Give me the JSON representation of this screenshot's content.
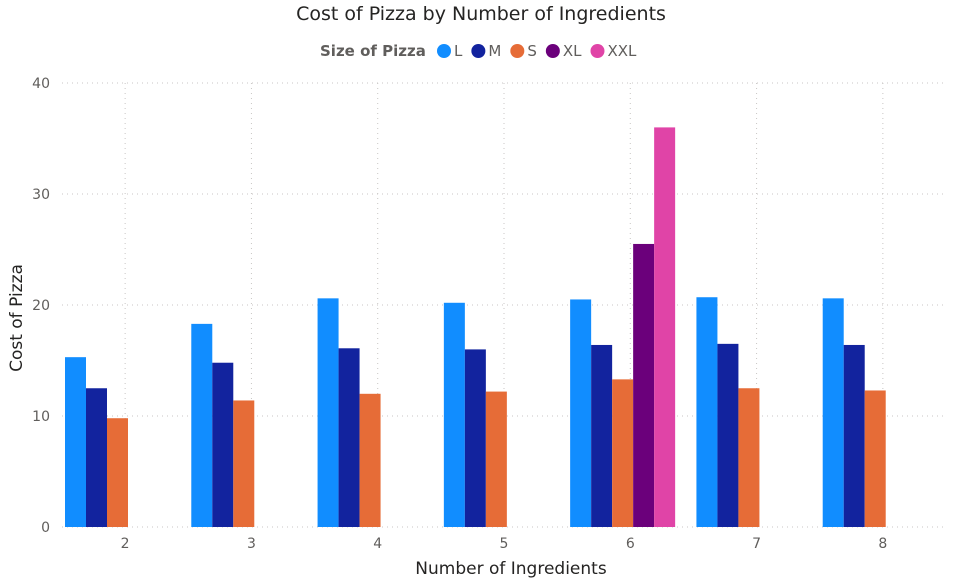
{
  "chart_data": {
    "type": "bar",
    "title": "Cost of Pizza by Number of Ingredients",
    "xlabel": "Number of Ingredients",
    "ylabel": "Cost of Pizza",
    "ylim": [
      0,
      40
    ],
    "yticks": [
      0,
      10,
      20,
      30,
      40
    ],
    "legend": {
      "title": "Size of Pizza",
      "placement": "top-center"
    },
    "grid": true,
    "categories": [
      "2",
      "3",
      "4",
      "5",
      "6",
      "7",
      "8"
    ],
    "series": [
      {
        "name": "L",
        "color": "#118dff",
        "values": [
          15.3,
          18.3,
          20.6,
          20.2,
          20.5,
          20.7,
          20.6
        ]
      },
      {
        "name": "M",
        "color": "#12239e",
        "values": [
          12.5,
          14.8,
          16.1,
          16.0,
          16.4,
          16.5,
          16.4
        ]
      },
      {
        "name": "S",
        "color": "#e66c37",
        "values": [
          9.8,
          11.4,
          12.0,
          12.2,
          13.3,
          12.5,
          12.3
        ]
      },
      {
        "name": "XL",
        "color": "#6b007b",
        "values": [
          null,
          null,
          null,
          null,
          25.5,
          null,
          null
        ]
      },
      {
        "name": "XXL",
        "color": "#e044a7",
        "values": [
          null,
          null,
          null,
          null,
          36.0,
          null,
          null
        ]
      }
    ]
  }
}
